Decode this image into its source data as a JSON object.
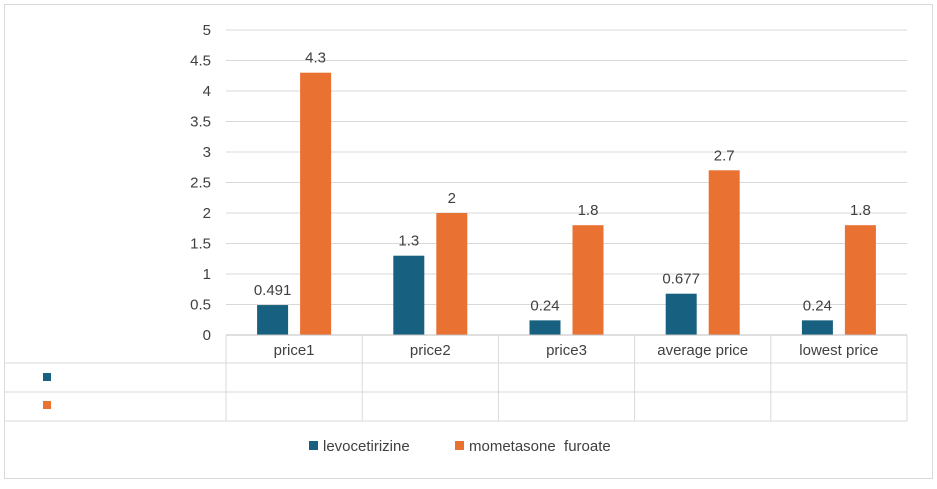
{
  "chart_data": {
    "type": "bar",
    "categories": [
      "price1",
      "price2",
      "price3",
      "average price",
      "lowest price"
    ],
    "series": [
      {
        "name": "levocetirizine",
        "values": [
          0.491,
          1.3,
          0.24,
          0.677,
          0.24
        ],
        "labels": [
          "0.491",
          "1.3",
          "0.24",
          "0.677",
          "0.24"
        ],
        "color": "#17607f"
      },
      {
        "name": "mometasone  furoate",
        "values": [
          4.3,
          2,
          1.8,
          2.7,
          1.8
        ],
        "labels": [
          "4.3",
          "2",
          "1.8",
          "2.7",
          "1.8"
        ],
        "color": "#e97132"
      }
    ],
    "ylim": [
      0,
      5
    ],
    "yticks": [
      "0",
      "0.5",
      "1",
      "1.5",
      "2",
      "2.5",
      "3",
      "3.5",
      "4",
      "4.5",
      "5"
    ],
    "title": "",
    "xlabel": "",
    "ylabel": "",
    "grid": true,
    "legend": "bottom",
    "data_table": true
  },
  "colors": {
    "gridline": "#d9d9d9",
    "axis": "#bfbfbf",
    "border": "#d9d9d9",
    "text": "#404040"
  }
}
